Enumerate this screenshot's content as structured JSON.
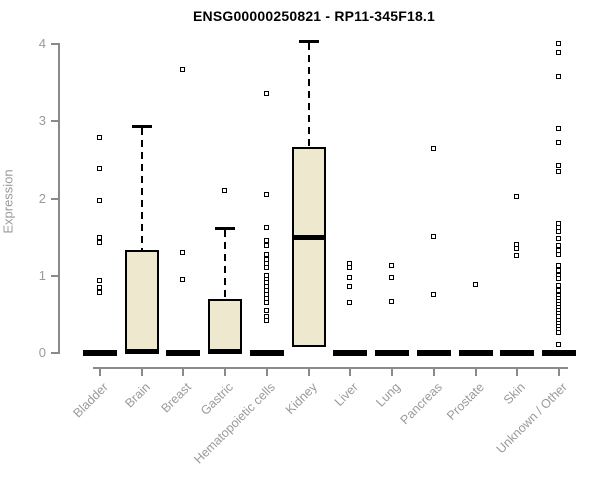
{
  "chart_data": {
    "type": "boxplot",
    "title": "ENSG00000250821 - RP11-345F18.1",
    "ylabel": "Expression",
    "xlabel": "",
    "ylim": [
      0,
      4.1
    ],
    "y_ticks": [
      0,
      1,
      2,
      3,
      4
    ],
    "grid": "off",
    "legend": "none",
    "box_fill_color": "#EDE8CE",
    "box_border_color": "#000000",
    "axis_color": "#8A8A8A",
    "axis_text_color": "#9A9A9A",
    "categories": [
      "Bladder",
      "Brain",
      "Breast",
      "Gastric",
      "Hematopoietic cells",
      "Kidney",
      "Liver",
      "Lung",
      "Pancreas",
      "Prostate",
      "Skin",
      "Unknown / Other"
    ],
    "series": [
      {
        "name": "Bladder",
        "q1": 0,
        "median": 0,
        "q3": 0,
        "whisker_low": 0,
        "whisker_high": 0,
        "outliers": [
          2.78,
          2.38,
          1.97,
          1.49,
          1.42,
          0.93,
          0.84,
          0.78
        ]
      },
      {
        "name": "Brain",
        "q1": 0,
        "median": 0,
        "q3": 1.32,
        "whisker_low": 0,
        "whisker_high": 2.92,
        "outliers": []
      },
      {
        "name": "Breast",
        "q1": 0,
        "median": 0,
        "q3": 0,
        "whisker_low": 0,
        "whisker_high": 0,
        "outliers": [
          3.66,
          1.3,
          0.95
        ]
      },
      {
        "name": "Gastric",
        "q1": 0,
        "median": 0,
        "q3": 0.68,
        "whisker_low": 0,
        "whisker_high": 1.6,
        "outliers": [
          2.1
        ]
      },
      {
        "name": "Hematopoietic cells",
        "q1": 0,
        "median": 0,
        "q3": 0,
        "whisker_low": 0,
        "whisker_high": 0,
        "outliers": [
          3.35,
          2.04,
          1.62,
          1.45,
          1.39,
          1.27,
          1.21,
          1.15,
          1.1,
          1.0,
          0.95,
          0.9,
          0.85,
          0.8,
          0.75,
          0.7,
          0.65,
          0.54,
          0.47,
          0.42
        ]
      },
      {
        "name": "Kidney",
        "q1": 0.07,
        "median": 1.48,
        "q3": 2.65,
        "whisker_low": 0.07,
        "whisker_high": 4.03,
        "outliers": []
      },
      {
        "name": "Liver",
        "q1": 0,
        "median": 0,
        "q3": 0,
        "whisker_low": 0,
        "whisker_high": 0,
        "outliers": [
          1.15,
          1.1,
          0.97,
          0.85,
          0.65
        ]
      },
      {
        "name": "Lung",
        "q1": 0,
        "median": 0,
        "q3": 0,
        "whisker_low": 0,
        "whisker_high": 0,
        "outliers": [
          1.13,
          0.97,
          0.66
        ]
      },
      {
        "name": "Pancreas",
        "q1": 0,
        "median": 0,
        "q3": 0,
        "whisker_low": 0,
        "whisker_high": 0,
        "outliers": [
          2.64,
          1.5,
          0.75
        ]
      },
      {
        "name": "Prostate",
        "q1": 0,
        "median": 0,
        "q3": 0,
        "whisker_low": 0,
        "whisker_high": 0,
        "outliers": [
          0.88
        ]
      },
      {
        "name": "Skin",
        "q1": 0,
        "median": 0,
        "q3": 0,
        "whisker_low": 0,
        "whisker_high": 0,
        "outliers": [
          2.02,
          1.4,
          1.35,
          1.25
        ]
      },
      {
        "name": "Unknown / Other",
        "q1": 0,
        "median": 0,
        "q3": 0,
        "whisker_low": 0,
        "whisker_high": 0,
        "outliers": [
          4.0,
          3.88,
          3.57,
          2.9,
          2.72,
          2.42,
          2.34,
          1.67,
          1.62,
          1.57,
          1.48,
          1.39,
          1.32,
          1.27,
          1.13,
          1.06,
          1.0,
          0.96,
          0.87,
          0.8,
          0.74,
          0.7,
          0.66,
          0.62,
          0.58,
          0.54,
          0.5,
          0.46,
          0.42,
          0.38,
          0.34,
          0.3,
          0.26,
          0.1
        ]
      }
    ]
  }
}
